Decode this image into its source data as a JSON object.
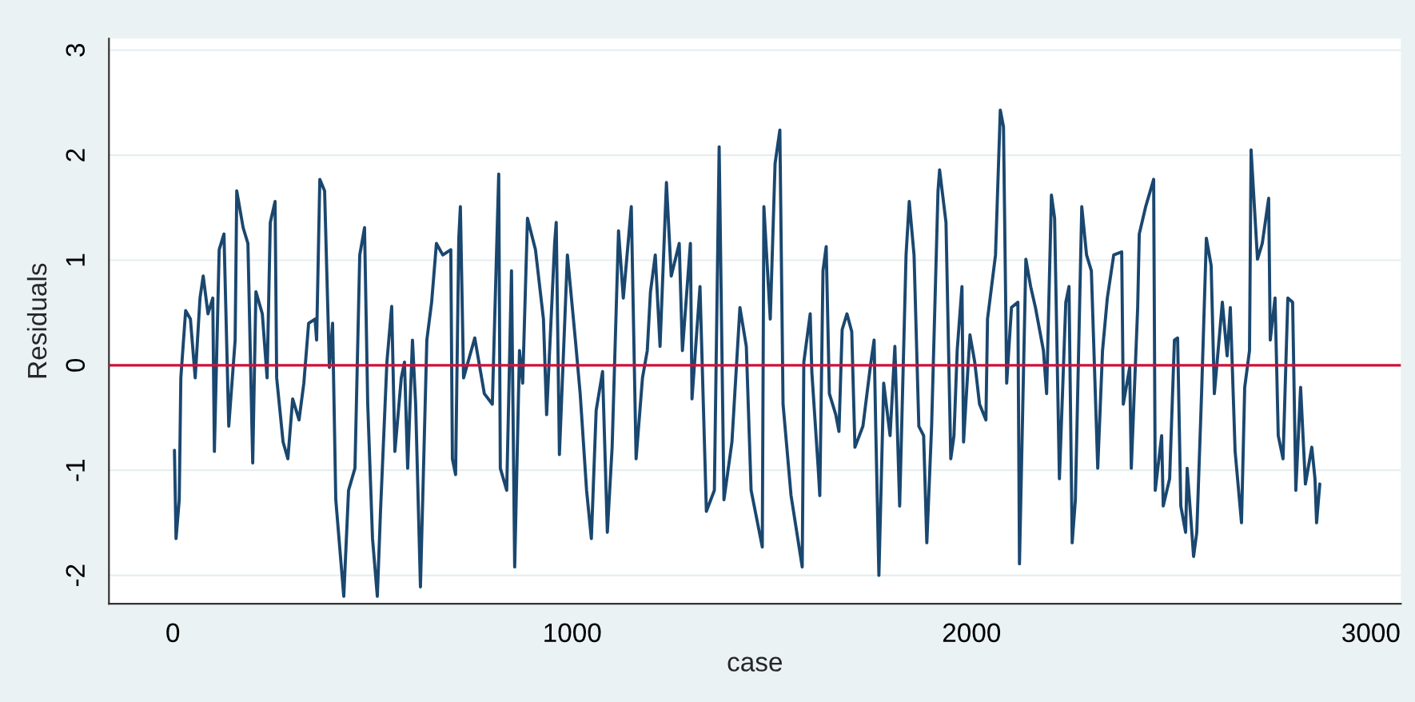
{
  "chart_data": {
    "type": "line",
    "xlabel": "case",
    "ylabel": "Residuals",
    "xlim": [
      -160,
      3075
    ],
    "xticks": [
      0,
      1000,
      2000,
      3000
    ],
    "ylim": [
      -2.27,
      3.11
    ],
    "yticks": [
      -2,
      -1,
      0,
      1,
      2,
      3
    ],
    "grid": "y",
    "legend": false,
    "marker": "none",
    "line_style": "solid",
    "ref_lines": [
      {
        "axis": "y",
        "value": 0,
        "color": "#d0103a"
      }
    ],
    "series": [
      {
        "color": "#1a476f",
        "x": [
          4,
          8,
          16,
          20,
          32,
          44,
          56,
          68,
          76,
          88,
          100,
          104,
          116,
          128,
          140,
          156,
          160,
          176,
          188,
          200,
          208,
          224,
          236,
          244,
          256,
          260,
          276,
          288,
          300,
          316,
          328,
          340,
          356,
          360,
          368,
          380,
          392,
          400,
          408,
          428,
          440,
          456,
          468,
          480,
          488,
          500,
          512,
          520,
          536,
          548,
          556,
          572,
          580,
          588,
          600,
          608,
          620,
          636,
          648,
          660,
          676,
          696,
          700,
          708,
          716,
          720,
          728,
          756,
          780,
          800,
          816,
          820,
          836,
          848,
          856,
          868,
          876,
          888,
          908,
          928,
          936,
          956,
          960,
          968,
          988,
          1008,
          1020,
          1036,
          1048,
          1060,
          1076,
          1088,
          1100,
          1116,
          1128,
          1148,
          1160,
          1176,
          1188,
          1196,
          1208,
          1220,
          1236,
          1248,
          1268,
          1276,
          1296,
          1300,
          1320,
          1336,
          1356,
          1368,
          1380,
          1400,
          1420,
          1436,
          1448,
          1476,
          1480,
          1496,
          1508,
          1520,
          1528,
          1548,
          1576,
          1580,
          1596,
          1600,
          1616,
          1620,
          1628,
          1636,
          1644,
          1660,
          1668,
          1676,
          1688,
          1700,
          1708,
          1728,
          1748,
          1756,
          1760,
          1768,
          1780,
          1796,
          1808,
          1820,
          1836,
          1844,
          1856,
          1868,
          1880,
          1888,
          1900,
          1916,
          1920,
          1936,
          1948,
          1956,
          1964,
          1976,
          1980,
          1996,
          2008,
          2020,
          2036,
          2040,
          2060,
          2072,
          2080,
          2088,
          2100,
          2116,
          2120,
          2136,
          2148,
          2160,
          2180,
          2188,
          2200,
          2208,
          2220,
          2236,
          2244,
          2252,
          2260,
          2276,
          2288,
          2300,
          2316,
          2328,
          2340,
          2356,
          2376,
          2380,
          2396,
          2400,
          2416,
          2420,
          2436,
          2456,
          2460,
          2476,
          2480,
          2496,
          2508,
          2516,
          2524,
          2536,
          2540,
          2556,
          2564,
          2576,
          2588,
          2600,
          2608,
          2628,
          2640,
          2648,
          2660,
          2676,
          2684,
          2696,
          2700,
          2716,
          2728,
          2744,
          2748,
          2760,
          2768,
          2780,
          2792,
          2804,
          2812,
          2824,
          2836,
          2852,
          2860,
          2864,
          2872
        ],
        "values": [
          -0.81,
          -1.65,
          -1.28,
          -0.12,
          0.52,
          0.44,
          -0.12,
          0.64,
          0.85,
          0.49,
          0.64,
          -0.82,
          1.1,
          1.25,
          -0.58,
          0.24,
          1.66,
          1.31,
          1.16,
          -0.93,
          0.7,
          0.49,
          -0.12,
          1.36,
          1.56,
          -0.12,
          -0.73,
          -0.89,
          -0.32,
          -0.52,
          -0.17,
          0.4,
          0.44,
          0.24,
          1.77,
          1.66,
          -0.02,
          0.4,
          -1.28,
          -2.2,
          -1.19,
          -0.98,
          1.05,
          1.31,
          -0.37,
          -1.65,
          -2.2,
          -1.39,
          0.03,
          0.56,
          -0.82,
          -0.12,
          0.03,
          -0.98,
          0.24,
          -0.37,
          -2.11,
          0.24,
          0.6,
          1.16,
          1.05,
          1.1,
          -0.89,
          -1.04,
          1.21,
          1.51,
          -0.12,
          0.26,
          -0.27,
          -0.37,
          1.82,
          -0.98,
          -1.19,
          0.9,
          -1.92,
          0.14,
          -0.17,
          1.4,
          1.1,
          0.44,
          -0.47,
          1.16,
          1.36,
          -0.85,
          1.05,
          0.24,
          -0.27,
          -1.19,
          -1.65,
          -0.43,
          -0.06,
          -1.59,
          -0.78,
          1.28,
          0.64,
          1.51,
          -0.89,
          -0.12,
          0.14,
          0.7,
          1.05,
          0.18,
          1.74,
          0.85,
          1.16,
          0.14,
          1.16,
          -0.32,
          0.75,
          -1.39,
          -1.19,
          2.08,
          -1.28,
          -0.73,
          0.55,
          0.18,
          -1.19,
          -1.73,
          1.51,
          0.44,
          1.92,
          2.24,
          -0.37,
          -1.24,
          -1.92,
          0.03,
          0.49,
          -0.06,
          -0.98,
          -1.24,
          0.9,
          1.13,
          -0.27,
          -0.47,
          -0.63,
          0.34,
          0.49,
          0.32,
          -0.78,
          -0.58,
          0.03,
          0.24,
          -0.58,
          -2.0,
          -0.17,
          -0.67,
          0.18,
          -1.34,
          1.05,
          1.56,
          1.05,
          -0.58,
          -0.67,
          -1.69,
          -0.58,
          1.66,
          1.86,
          1.36,
          -0.89,
          -0.67,
          0.14,
          0.75,
          -0.73,
          0.29,
          0.03,
          -0.37,
          -0.52,
          0.44,
          1.05,
          2.43,
          2.27,
          -0.17,
          0.55,
          0.6,
          -1.89,
          1.01,
          0.75,
          0.55,
          0.14,
          -0.27,
          1.62,
          1.4,
          -1.08,
          0.6,
          0.75,
          -1.69,
          -1.28,
          1.51,
          1.05,
          0.9,
          -0.98,
          0.14,
          0.64,
          1.05,
          1.08,
          -0.37,
          -0.02,
          -0.98,
          0.55,
          1.25,
          1.51,
          1.77,
          -1.19,
          -0.67,
          -1.34,
          -1.08,
          0.24,
          0.26,
          -1.34,
          -1.59,
          -0.98,
          -1.82,
          -1.59,
          -0.27,
          1.21,
          0.95,
          -0.27,
          0.6,
          0.09,
          0.55,
          -0.82,
          -1.5,
          -0.21,
          0.14,
          2.05,
          1.01,
          1.16,
          1.59,
          0.24,
          0.64,
          -0.67,
          -0.89,
          0.64,
          0.6,
          -1.19,
          -0.21,
          -1.13,
          -0.78,
          -1.08,
          -1.5,
          -1.13
        ]
      }
    ]
  }
}
